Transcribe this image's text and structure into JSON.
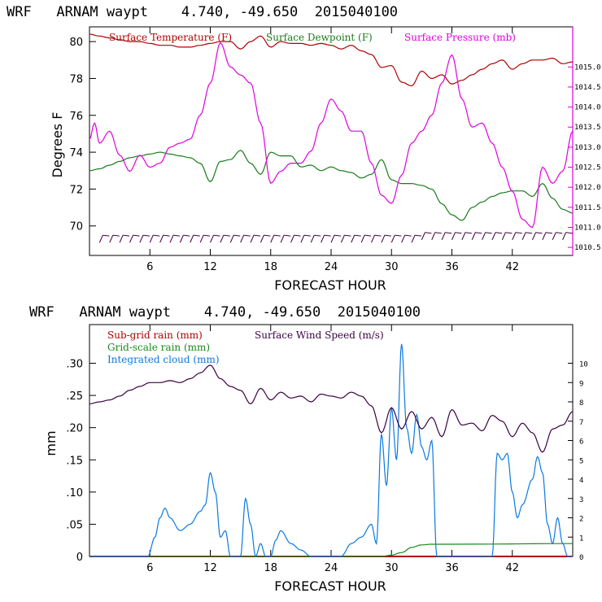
{
  "colors": {
    "temperature": "#b00000",
    "dewpoint": "#1a7a1a",
    "pressure": "#e000e0",
    "wind_barbs": "#400040",
    "subgrid_rain": "#b00000",
    "gridscale_rain": "#1a8a1a",
    "cloud": "#0a7ae0",
    "wind_speed": "#3a0040"
  },
  "chart_data": [
    {
      "type": "line",
      "title": "WRF   ARNAM waypt    4.740, -49.650  2015040100",
      "xlabel": "FORECAST HOUR",
      "ylabel": "Degrees F",
      "xlim": [
        0,
        48
      ],
      "ylim": [
        68.4,
        80.8
      ],
      "xticks": [
        "6",
        "12",
        "18",
        "24",
        "30",
        "36",
        "42"
      ],
      "yticks": [
        "70",
        "72",
        "74",
        "76",
        "78",
        "80"
      ],
      "y2lim": [
        1010.3,
        1016.0
      ],
      "y2ticks": [
        "1010.5",
        "1011.0",
        "1011.5",
        "1012.0",
        "1012.5",
        "1013.0",
        "1013.5",
        "1014.0",
        "1014.5",
        "1015.0"
      ],
      "legend": [
        "Surface Temperature (F)",
        "Surface Dewpoint (F)",
        "Surface Pressure (mb)"
      ],
      "series": [
        {
          "name": "Surface Temperature (F)",
          "x": [
            0,
            1,
            2,
            3,
            4,
            5,
            6,
            7,
            8,
            9,
            10,
            11,
            12,
            13,
            14,
            15,
            16,
            17,
            18,
            19,
            20,
            21,
            22,
            23,
            24,
            25,
            26,
            27,
            28,
            29,
            30,
            31,
            32,
            33,
            34,
            35,
            36,
            37,
            38,
            39,
            40,
            41,
            42,
            43,
            44,
            45,
            46,
            47,
            48
          ],
          "values": [
            80.4,
            80.3,
            80.2,
            80.1,
            80.0,
            80.0,
            79.9,
            79.8,
            79.8,
            79.7,
            79.7,
            79.8,
            79.9,
            80.0,
            80.0,
            79.6,
            80.0,
            80.3,
            79.7,
            80.0,
            79.9,
            79.9,
            79.8,
            79.9,
            79.8,
            79.6,
            79.8,
            79.5,
            79.3,
            78.6,
            78.7,
            77.8,
            77.6,
            78.4,
            78.0,
            78.2,
            77.7,
            77.9,
            78.2,
            78.5,
            78.8,
            79.0,
            78.5,
            78.8,
            79.0,
            79.0,
            79.1,
            78.8,
            78.9
          ]
        },
        {
          "name": "Surface Dewpoint (F)",
          "x": [
            0,
            1,
            2,
            3,
            4,
            5,
            6,
            7,
            8,
            9,
            10,
            11,
            12,
            13,
            14,
            15,
            16,
            17,
            18,
            19,
            20,
            21,
            22,
            23,
            24,
            25,
            26,
            27,
            28,
            29,
            30,
            31,
            32,
            33,
            34,
            35,
            36,
            37,
            38,
            39,
            40,
            41,
            42,
            43,
            44,
            45,
            46,
            47,
            48
          ],
          "values": [
            73.0,
            73.1,
            73.3,
            73.5,
            73.7,
            73.8,
            73.9,
            74.0,
            73.9,
            73.8,
            73.7,
            73.4,
            72.4,
            73.5,
            73.6,
            74.1,
            73.4,
            72.8,
            74.0,
            73.8,
            73.8,
            73.2,
            73.3,
            73.0,
            73.2,
            73.0,
            72.9,
            72.6,
            72.8,
            73.6,
            72.5,
            72.3,
            72.3,
            72.2,
            72.0,
            71.2,
            70.6,
            70.3,
            71.0,
            71.3,
            71.6,
            71.8,
            71.9,
            71.9,
            71.6,
            72.3,
            71.5,
            70.9,
            70.7
          ]
        },
        {
          "name": "Surface Pressure (mb)",
          "axis": "right",
          "x": [
            0,
            0.5,
            1,
            2,
            3,
            4,
            5,
            6,
            7,
            8,
            9,
            10,
            11,
            12,
            13,
            14,
            15,
            16,
            17,
            18,
            19,
            20,
            21,
            22,
            23,
            24,
            25,
            26,
            27,
            28,
            29,
            30,
            31,
            32,
            33,
            34,
            35,
            36,
            37,
            38,
            39,
            40,
            41,
            42,
            43,
            44,
            45,
            46,
            47,
            48
          ],
          "values": [
            1013.2,
            1013.6,
            1013.1,
            1013.4,
            1012.8,
            1012.4,
            1012.8,
            1012.5,
            1012.6,
            1013.0,
            1013.1,
            1013.2,
            1013.8,
            1014.6,
            1015.6,
            1015.0,
            1014.8,
            1014.6,
            1013.6,
            1012.1,
            1012.4,
            1012.6,
            1012.6,
            1012.9,
            1013.6,
            1014.2,
            1013.9,
            1013.4,
            1013.4,
            1012.6,
            1011.8,
            1011.6,
            1012.3,
            1013.1,
            1013.4,
            1013.8,
            1014.6,
            1015.3,
            1014.2,
            1013.5,
            1013.6,
            1013.1,
            1012.5,
            1011.9,
            1011.2,
            1011.0,
            1012.5,
            1012.1,
            1012.4,
            1013.4
          ]
        }
      ]
    },
    {
      "type": "line",
      "title": "WRF   ARNAM waypt    4.740, -49.650  2015040100",
      "xlabel": "FORECAST HOUR",
      "ylabel": "mm",
      "xlim": [
        0,
        48
      ],
      "ylim": [
        0,
        0.36
      ],
      "xticks": [
        "6",
        "12",
        "18",
        "24",
        "30",
        "36",
        "42"
      ],
      "yticks": [
        "0",
        ".05",
        ".10",
        ".15",
        ".20",
        ".25",
        ".30"
      ],
      "y2lim": [
        0,
        12
      ],
      "y2ticks": [
        "0",
        "1",
        "2",
        "3",
        "4",
        "5",
        "6",
        "7",
        "8",
        "9",
        "10"
      ],
      "legend": [
        "Sub-grid rain (mm)",
        "Grid-scale rain (mm)",
        "Integrated cloud (mm)",
        "Surface Wind Speed (m/s)"
      ],
      "series": [
        {
          "name": "Sub-grid rain (mm)",
          "x": [
            0,
            48
          ],
          "values": [
            0,
            0
          ]
        },
        {
          "name": "Grid-scale rain (mm)",
          "x": [
            0,
            29,
            30,
            31,
            32,
            33,
            34,
            36,
            48
          ],
          "values": [
            0,
            0,
            0.002,
            0.006,
            0.014,
            0.018,
            0.019,
            0.019,
            0.02
          ]
        },
        {
          "name": "Integrated cloud (mm)",
          "x": [
            0,
            5.8,
            6.5,
            7,
            7.5,
            8,
            9,
            10,
            11,
            11.5,
            12,
            12.5,
            13,
            13.5,
            14,
            15,
            15.5,
            16,
            16.5,
            17,
            17.5,
            18,
            18.5,
            19,
            20,
            21,
            22,
            25,
            26,
            27,
            28,
            28.5,
            29,
            29.5,
            30,
            30.5,
            31,
            31.5,
            32,
            32.5,
            33,
            33.5,
            34,
            34.5,
            35,
            40,
            40.5,
            41,
            41.5,
            42,
            42.5,
            43,
            44,
            44.5,
            45,
            45.5,
            46,
            46.5,
            47,
            47.5,
            48
          ],
          "values": [
            0,
            0,
            0.03,
            0.06,
            0.075,
            0.06,
            0.04,
            0.05,
            0.07,
            0.08,
            0.13,
            0.1,
            0.03,
            0.04,
            0,
            0,
            0.09,
            0.05,
            0,
            0.02,
            0,
            0,
            0.025,
            0.04,
            0.02,
            0.01,
            0,
            0,
            0.02,
            0.03,
            0.05,
            0.02,
            0.19,
            0.11,
            0.23,
            0.15,
            0.33,
            0.2,
            0.16,
            0.22,
            0.17,
            0.15,
            0.18,
            0,
            0,
            0,
            0.16,
            0.15,
            0.16,
            0.1,
            0.06,
            0.08,
            0.12,
            0.155,
            0.13,
            0.05,
            0.02,
            0.06,
            0.02,
            0,
            0
          ]
        },
        {
          "name": "Surface Wind Speed (m/s)",
          "axis": "right",
          "x": [
            0,
            1,
            2,
            3,
            4,
            5,
            6,
            7,
            8,
            9,
            10,
            11,
            12,
            13,
            14,
            15,
            16,
            17,
            18,
            19,
            20,
            21,
            22,
            23,
            24,
            25,
            26,
            27,
            28,
            29,
            30,
            31,
            32,
            33,
            34,
            35,
            36,
            37,
            38,
            39,
            40,
            41,
            42,
            43,
            44,
            45,
            46,
            47,
            48
          ],
          "values": [
            7.9,
            8.0,
            8.1,
            8.3,
            8.6,
            8.8,
            9.0,
            9.0,
            9.1,
            9.0,
            9.2,
            9.5,
            9.9,
            9.2,
            8.8,
            8.6,
            7.9,
            8.7,
            8.1,
            8.5,
            8.2,
            8.3,
            8.0,
            8.4,
            8.3,
            8.2,
            8.5,
            8.3,
            7.8,
            6.4,
            7.7,
            6.6,
            7.5,
            6.6,
            7.2,
            6.2,
            7.6,
            6.8,
            6.9,
            6.5,
            7.3,
            7.0,
            6.2,
            6.9,
            6.4,
            5.4,
            6.6,
            6.8,
            7.5
          ]
        }
      ]
    }
  ]
}
